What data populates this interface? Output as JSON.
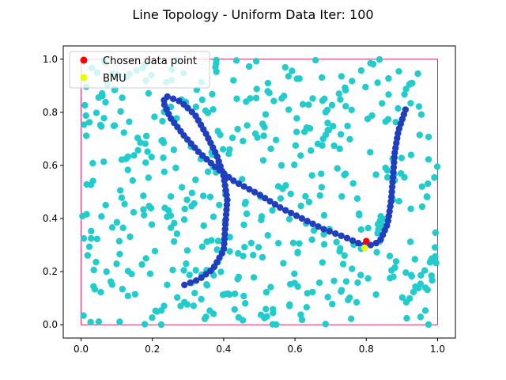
{
  "chart_data": {
    "type": "scatter",
    "title": "Line Topology - Uniform Data Iter: 100",
    "xlabel": "",
    "ylabel": "",
    "xlim": [
      -0.05,
      1.05
    ],
    "ylim": [
      -0.05,
      1.05
    ],
    "xticks": [
      "0.0",
      "0.2",
      "0.4",
      "0.6",
      "0.8",
      "1.0"
    ],
    "yticks": [
      "0.0",
      "0.2",
      "0.4",
      "0.6",
      "0.8",
      "1.0"
    ],
    "grid": false,
    "legend_position": "top-left",
    "bounds_rect": {
      "x0": 0.0,
      "y0": 0.0,
      "x1": 1.0,
      "y1": 1.0,
      "color": "#e0245e"
    },
    "data_color": "#22cccc",
    "neuron_color": "#1f3fbf",
    "data_point_count": 500,
    "data_seed": 7,
    "neuron_path": [
      [
        0.29,
        0.15
      ],
      [
        0.33,
        0.17
      ],
      [
        0.37,
        0.21
      ],
      [
        0.4,
        0.28
      ],
      [
        0.405,
        0.38
      ],
      [
        0.41,
        0.47
      ],
      [
        0.4,
        0.56
      ],
      [
        0.38,
        0.64
      ],
      [
        0.35,
        0.72
      ],
      [
        0.32,
        0.79
      ],
      [
        0.28,
        0.84
      ],
      [
        0.24,
        0.86
      ],
      [
        0.23,
        0.84
      ],
      [
        0.25,
        0.78
      ],
      [
        0.29,
        0.71
      ],
      [
        0.33,
        0.65
      ],
      [
        0.38,
        0.59
      ],
      [
        0.43,
        0.54
      ],
      [
        0.5,
        0.49
      ],
      [
        0.56,
        0.44
      ],
      [
        0.62,
        0.4
      ],
      [
        0.68,
        0.36
      ],
      [
        0.74,
        0.33
      ],
      [
        0.79,
        0.3
      ],
      [
        0.82,
        0.3
      ],
      [
        0.84,
        0.32
      ],
      [
        0.86,
        0.38
      ],
      [
        0.87,
        0.47
      ],
      [
        0.875,
        0.56
      ],
      [
        0.88,
        0.65
      ],
      [
        0.89,
        0.73
      ],
      [
        0.91,
        0.81
      ]
    ],
    "neuron_count": 120,
    "series": [
      {
        "name": "Chosen data point",
        "color": "#ff0000",
        "points": [
          [
            0.8,
            0.315
          ]
        ]
      },
      {
        "name": "BMU",
        "color": "#e8ff00",
        "points": [
          [
            0.795,
            0.29
          ]
        ]
      }
    ]
  }
}
